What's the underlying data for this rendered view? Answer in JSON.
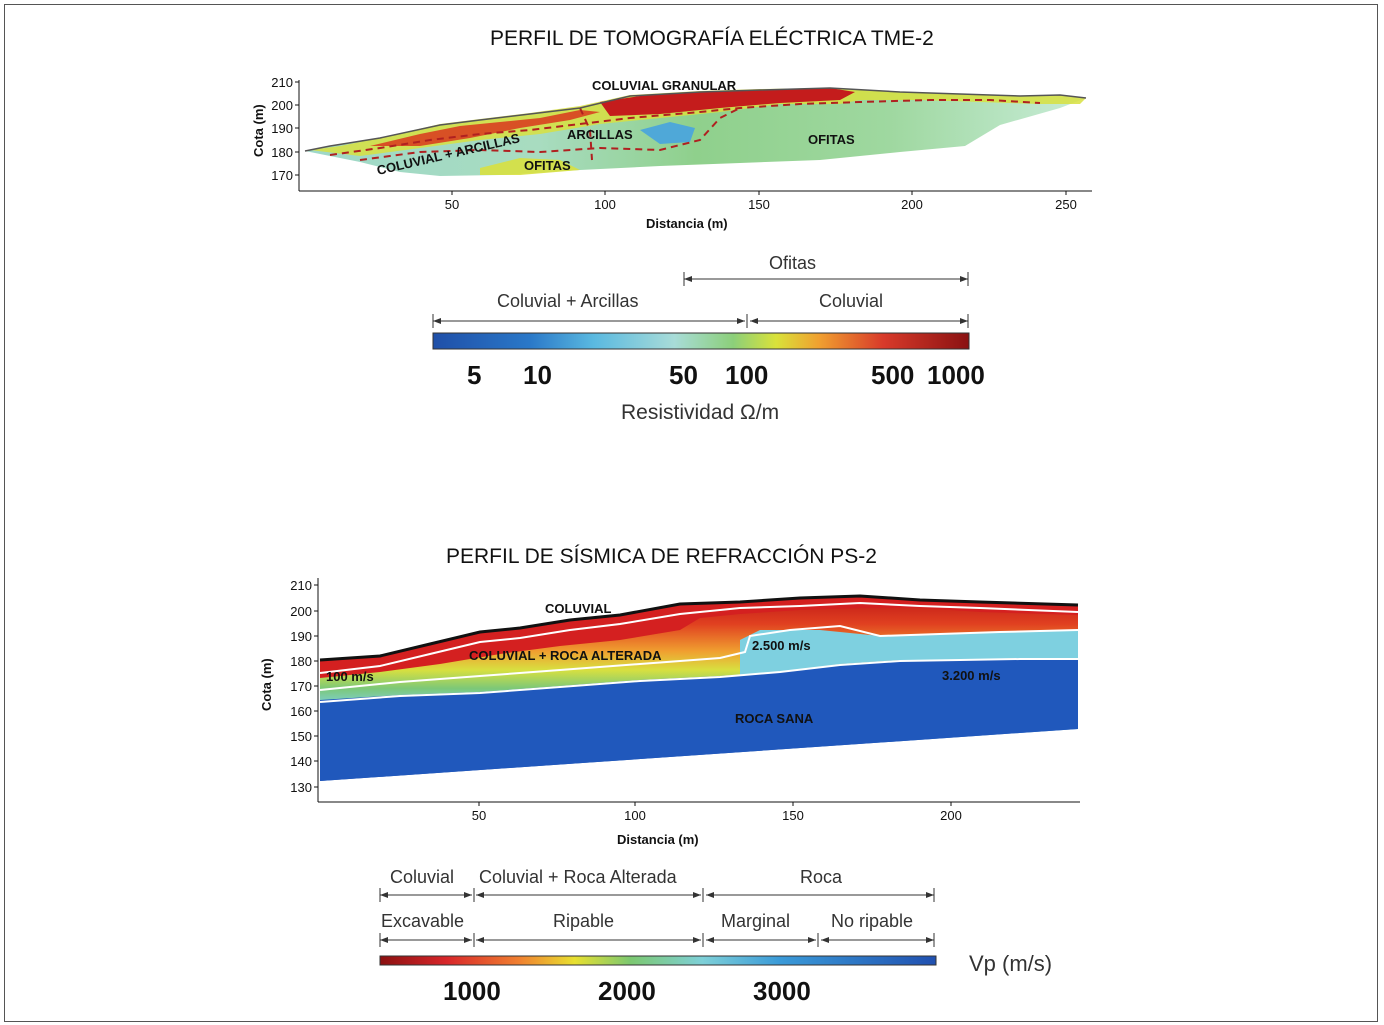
{
  "top": {
    "title": "PERFIL DE TOMOGRAFÍA ELÉCTRICA TME-2",
    "y_axis_label": "Cota (m)",
    "x_axis_label": "Distancia (m)",
    "y_ticks": [
      "210",
      "200",
      "190",
      "180",
      "170"
    ],
    "x_ticks": [
      "50",
      "100",
      "150",
      "200",
      "250"
    ],
    "annotations": [
      "COLUVIAL GRANULAR",
      "COLUVIAL + ARCILLAS",
      "ARCILLAS",
      "OFITAS",
      "OFITAS"
    ],
    "legend": {
      "range_labels": [
        "Ofitas",
        "Coluvial + Arcillas",
        "Coluvial"
      ],
      "ticks": [
        "5",
        "10",
        "50",
        "100",
        "500",
        "1000"
      ],
      "caption": "Resistividad  Ω/m"
    }
  },
  "bottom": {
    "title": "PERFIL DE SÍSMICA DE REFRACCIÓN PS-2",
    "y_axis_label": "Cota (m)",
    "x_axis_label": "Distancia (m)",
    "y_ticks": [
      "210",
      "200",
      "190",
      "180",
      "170",
      "160",
      "150",
      "140",
      "130"
    ],
    "x_ticks": [
      "50",
      "100",
      "150",
      "200"
    ],
    "annotations": [
      "COLUVIAL",
      "COLUVIAL + ROCA ALTERADA",
      "2.500 m/s",
      "100 m/s",
      "3.200 m/s",
      "ROCA SANA"
    ],
    "legend": {
      "row1": [
        "Coluvial",
        "Coluvial + Roca Alterada",
        "Roca"
      ],
      "row2": [
        "Excavable",
        "Ripable",
        "Marginal",
        "No ripable"
      ],
      "ticks": [
        "1000",
        "2000",
        "3000"
      ],
      "caption": "Vp  (m/s)"
    }
  }
}
